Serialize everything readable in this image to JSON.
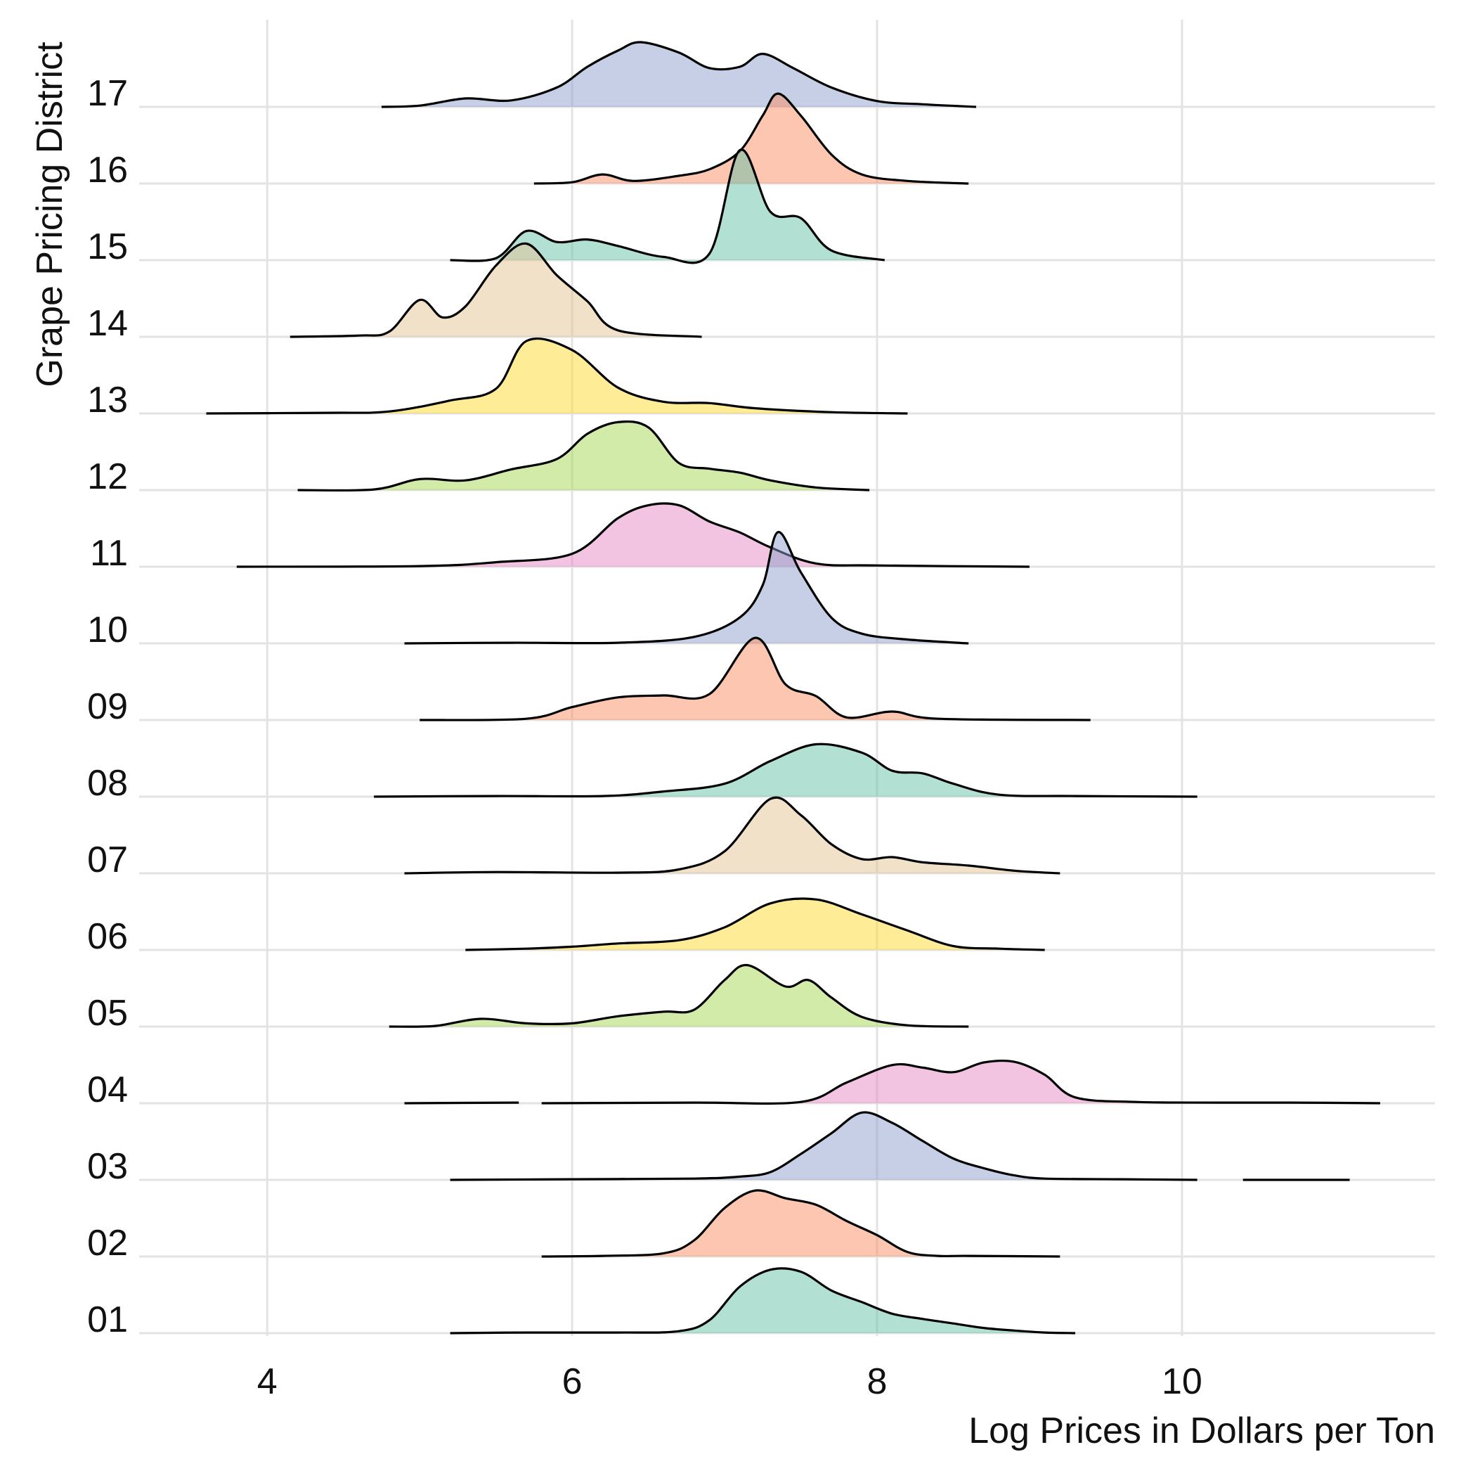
{
  "chart_data": {
    "type": "ridgeline",
    "xlabel": "Log Prices in Dollars per Ton",
    "ylabel": "Grape Pricing District",
    "xlim": [
      3.16,
      11.66
    ],
    "x_ticks": [
      "4",
      "6",
      "8",
      "10"
    ],
    "x_tick_values": [
      4,
      6,
      8,
      10
    ],
    "grid": true,
    "legend": "none",
    "series": [
      {
        "name": "01",
        "color": "#66C2A5",
        "range": [
          5.2,
          9.3
        ],
        "points": [
          [
            5.2,
            0.0
          ],
          [
            5.7,
            0.01
          ],
          [
            6.3,
            0.01
          ],
          [
            6.7,
            0.03
          ],
          [
            6.9,
            0.2
          ],
          [
            7.1,
            0.72
          ],
          [
            7.3,
            0.98
          ],
          [
            7.5,
            0.95
          ],
          [
            7.7,
            0.66
          ],
          [
            7.9,
            0.48
          ],
          [
            8.1,
            0.3
          ],
          [
            8.3,
            0.22
          ],
          [
            8.5,
            0.15
          ],
          [
            8.7,
            0.08
          ],
          [
            8.9,
            0.04
          ],
          [
            9.1,
            0.01
          ],
          [
            9.3,
            0.0
          ]
        ]
      },
      {
        "name": "02",
        "color": "#FC8D62",
        "range": [
          5.8,
          9.2
        ],
        "points": [
          [
            5.8,
            0.0
          ],
          [
            6.2,
            0.01
          ],
          [
            6.6,
            0.05
          ],
          [
            6.8,
            0.25
          ],
          [
            7.0,
            0.75
          ],
          [
            7.2,
            1.02
          ],
          [
            7.4,
            0.9
          ],
          [
            7.6,
            0.8
          ],
          [
            7.8,
            0.55
          ],
          [
            8.0,
            0.33
          ],
          [
            8.2,
            0.07
          ],
          [
            8.4,
            0.01
          ],
          [
            8.6,
            0.01
          ],
          [
            9.2,
            0.0
          ]
        ]
      },
      {
        "name": "03",
        "color": "#8DA0CB",
        "segments": [
          [
            [
              5.2,
              0.0
            ],
            [
              6.0,
              0.01
            ],
            [
              6.8,
              0.02
            ],
            [
              7.1,
              0.05
            ],
            [
              7.3,
              0.12
            ],
            [
              7.5,
              0.4
            ],
            [
              7.7,
              0.72
            ],
            [
              7.9,
              1.04
            ],
            [
              8.1,
              0.88
            ],
            [
              8.3,
              0.6
            ],
            [
              8.5,
              0.33
            ],
            [
              8.7,
              0.18
            ],
            [
              8.9,
              0.07
            ],
            [
              9.1,
              0.02
            ],
            [
              9.6,
              0.01
            ],
            [
              10.1,
              0.0
            ]
          ],
          [
            [
              10.4,
              0.0
            ],
            [
              11.1,
              0.0
            ]
          ]
        ]
      },
      {
        "name": "04",
        "color": "#E78AC3",
        "segments": [
          [
            [
              4.9,
              0.0
            ],
            [
              5.65,
              0.01
            ]
          ],
          [
            [
              5.8,
              0.0
            ],
            [
              6.8,
              0.01
            ],
            [
              7.5,
              0.02
            ],
            [
              7.8,
              0.32
            ],
            [
              8.1,
              0.59
            ],
            [
              8.3,
              0.55
            ],
            [
              8.5,
              0.48
            ],
            [
              8.7,
              0.63
            ],
            [
              8.9,
              0.64
            ],
            [
              9.1,
              0.44
            ],
            [
              9.3,
              0.09
            ],
            [
              9.7,
              0.02
            ],
            [
              10.2,
              0.01
            ],
            [
              10.7,
              0.01
            ],
            [
              11.3,
              0.0
            ]
          ]
        ]
      },
      {
        "name": "05",
        "color": "#A6D854",
        "range": [
          4.8,
          8.6
        ],
        "points": [
          [
            4.8,
            0.0
          ],
          [
            5.1,
            0.01
          ],
          [
            5.4,
            0.12
          ],
          [
            5.7,
            0.05
          ],
          [
            6.0,
            0.05
          ],
          [
            6.3,
            0.16
          ],
          [
            6.6,
            0.23
          ],
          [
            6.8,
            0.26
          ],
          [
            7.0,
            0.72
          ],
          [
            7.15,
            0.95
          ],
          [
            7.4,
            0.62
          ],
          [
            7.55,
            0.72
          ],
          [
            7.7,
            0.45
          ],
          [
            7.9,
            0.15
          ],
          [
            8.2,
            0.02
          ],
          [
            8.6,
            0.0
          ]
        ]
      },
      {
        "name": "06",
        "color": "#FFD92F",
        "range": [
          5.3,
          9.1
        ],
        "points": [
          [
            5.3,
            0.0
          ],
          [
            5.7,
            0.02
          ],
          [
            6.0,
            0.05
          ],
          [
            6.3,
            0.1
          ],
          [
            6.7,
            0.15
          ],
          [
            7.0,
            0.35
          ],
          [
            7.3,
            0.72
          ],
          [
            7.6,
            0.78
          ],
          [
            7.9,
            0.55
          ],
          [
            8.2,
            0.3
          ],
          [
            8.5,
            0.06
          ],
          [
            8.8,
            0.02
          ],
          [
            9.1,
            0.0
          ]
        ]
      },
      {
        "name": "07",
        "color": "#E5C494",
        "range": [
          4.9,
          9.2
        ],
        "points": [
          [
            4.9,
            0.0
          ],
          [
            5.5,
            0.02
          ],
          [
            6.3,
            0.01
          ],
          [
            6.7,
            0.06
          ],
          [
            7.0,
            0.34
          ],
          [
            7.3,
            1.15
          ],
          [
            7.5,
            0.9
          ],
          [
            7.7,
            0.45
          ],
          [
            7.9,
            0.22
          ],
          [
            8.1,
            0.25
          ],
          [
            8.3,
            0.17
          ],
          [
            8.6,
            0.12
          ],
          [
            8.9,
            0.04
          ],
          [
            9.2,
            0.0
          ]
        ]
      },
      {
        "name": "08",
        "color": "#66C2A5",
        "range": [
          4.7,
          10.1
        ],
        "points": [
          [
            4.7,
            0.0
          ],
          [
            5.5,
            0.01
          ],
          [
            6.2,
            0.01
          ],
          [
            6.6,
            0.08
          ],
          [
            7.0,
            0.2
          ],
          [
            7.3,
            0.55
          ],
          [
            7.6,
            0.81
          ],
          [
            7.9,
            0.68
          ],
          [
            8.1,
            0.4
          ],
          [
            8.3,
            0.36
          ],
          [
            8.5,
            0.2
          ],
          [
            8.8,
            0.03
          ],
          [
            9.3,
            0.01
          ],
          [
            10.1,
            0.0
          ]
        ]
      },
      {
        "name": "09",
        "color": "#FC8D62",
        "range": [
          5.0,
          9.4
        ],
        "points": [
          [
            5.0,
            0.0
          ],
          [
            5.7,
            0.02
          ],
          [
            6.0,
            0.2
          ],
          [
            6.3,
            0.35
          ],
          [
            6.6,
            0.38
          ],
          [
            6.9,
            0.4
          ],
          [
            7.2,
            1.27
          ],
          [
            7.4,
            0.55
          ],
          [
            7.6,
            0.37
          ],
          [
            7.8,
            0.04
          ],
          [
            8.1,
            0.13
          ],
          [
            8.4,
            0.02
          ],
          [
            9.4,
            0.0
          ]
        ]
      },
      {
        "name": "10",
        "color": "#8DA0CB",
        "range": [
          4.9,
          8.6
        ],
        "points": [
          [
            4.9,
            0.0
          ],
          [
            5.6,
            0.01
          ],
          [
            6.3,
            0.01
          ],
          [
            6.8,
            0.1
          ],
          [
            7.1,
            0.4
          ],
          [
            7.25,
            0.9
          ],
          [
            7.35,
            1.72
          ],
          [
            7.5,
            1.1
          ],
          [
            7.7,
            0.4
          ],
          [
            7.9,
            0.15
          ],
          [
            8.2,
            0.06
          ],
          [
            8.6,
            0.0
          ]
        ]
      },
      {
        "name": "11",
        "color": "#E78AC3",
        "range": [
          3.8,
          9.0
        ],
        "points": [
          [
            3.8,
            0.0
          ],
          [
            5.0,
            0.01
          ],
          [
            5.5,
            0.07
          ],
          [
            6.0,
            0.2
          ],
          [
            6.3,
            0.75
          ],
          [
            6.5,
            0.95
          ],
          [
            6.7,
            0.95
          ],
          [
            6.9,
            0.7
          ],
          [
            7.1,
            0.53
          ],
          [
            7.3,
            0.3
          ],
          [
            7.6,
            0.05
          ],
          [
            8.0,
            0.02
          ],
          [
            9.0,
            0.0
          ]
        ]
      },
      {
        "name": "12",
        "color": "#A6D854",
        "range": [
          4.2,
          7.95
        ],
        "points": [
          [
            4.2,
            0.0
          ],
          [
            4.7,
            0.01
          ],
          [
            5.0,
            0.17
          ],
          [
            5.3,
            0.15
          ],
          [
            5.6,
            0.32
          ],
          [
            5.9,
            0.48
          ],
          [
            6.1,
            0.87
          ],
          [
            6.3,
            1.05
          ],
          [
            6.5,
            0.97
          ],
          [
            6.7,
            0.42
          ],
          [
            6.9,
            0.33
          ],
          [
            7.1,
            0.27
          ],
          [
            7.3,
            0.15
          ],
          [
            7.6,
            0.04
          ],
          [
            7.95,
            0.0
          ]
        ]
      },
      {
        "name": "13",
        "color": "#FFD92F",
        "range": [
          3.6,
          8.2
        ],
        "points": [
          [
            3.6,
            0.0
          ],
          [
            4.4,
            0.01
          ],
          [
            4.8,
            0.03
          ],
          [
            5.2,
            0.2
          ],
          [
            5.5,
            0.38
          ],
          [
            5.7,
            1.12
          ],
          [
            6.0,
            0.98
          ],
          [
            6.3,
            0.4
          ],
          [
            6.6,
            0.18
          ],
          [
            6.9,
            0.16
          ],
          [
            7.2,
            0.08
          ],
          [
            7.7,
            0.02
          ],
          [
            8.2,
            0.0
          ]
        ]
      },
      {
        "name": "14",
        "color": "#E5C494",
        "range": [
          4.15,
          6.85
        ],
        "points": [
          [
            4.15,
            0.0
          ],
          [
            4.6,
            0.02
          ],
          [
            4.8,
            0.08
          ],
          [
            5.0,
            0.57
          ],
          [
            5.15,
            0.3
          ],
          [
            5.3,
            0.47
          ],
          [
            5.5,
            1.1
          ],
          [
            5.7,
            1.44
          ],
          [
            5.9,
            0.95
          ],
          [
            6.1,
            0.55
          ],
          [
            6.3,
            0.1
          ],
          [
            6.85,
            0.0
          ]
        ]
      },
      {
        "name": "15",
        "color": "#66C2A5",
        "range": [
          5.2,
          8.05
        ],
        "points": [
          [
            5.2,
            0.0
          ],
          [
            5.5,
            0.03
          ],
          [
            5.7,
            0.45
          ],
          [
            5.9,
            0.28
          ],
          [
            6.1,
            0.32
          ],
          [
            6.3,
            0.22
          ],
          [
            6.6,
            0.05
          ],
          [
            6.9,
            0.1
          ],
          [
            7.1,
            1.7
          ],
          [
            7.3,
            0.75
          ],
          [
            7.5,
            0.65
          ],
          [
            7.7,
            0.15
          ],
          [
            8.05,
            0.0
          ]
        ]
      },
      {
        "name": "16",
        "color": "#FC8D62",
        "range": [
          5.75,
          8.6
        ],
        "points": [
          [
            5.75,
            0.0
          ],
          [
            6.0,
            0.02
          ],
          [
            6.2,
            0.14
          ],
          [
            6.4,
            0.04
          ],
          [
            6.7,
            0.12
          ],
          [
            6.9,
            0.22
          ],
          [
            7.1,
            0.5
          ],
          [
            7.25,
            1.05
          ],
          [
            7.35,
            1.39
          ],
          [
            7.5,
            1.05
          ],
          [
            7.7,
            0.45
          ],
          [
            7.9,
            0.14
          ],
          [
            8.2,
            0.04
          ],
          [
            8.6,
            0.0
          ]
        ]
      },
      {
        "name": "17",
        "color": "#8DA0CB",
        "range": [
          4.75,
          8.65
        ],
        "points": [
          [
            4.75,
            0.0
          ],
          [
            5.0,
            0.02
          ],
          [
            5.3,
            0.13
          ],
          [
            5.6,
            0.1
          ],
          [
            5.9,
            0.3
          ],
          [
            6.1,
            0.62
          ],
          [
            6.3,
            0.87
          ],
          [
            6.45,
            1.0
          ],
          [
            6.7,
            0.84
          ],
          [
            6.9,
            0.6
          ],
          [
            7.1,
            0.62
          ],
          [
            7.25,
            0.82
          ],
          [
            7.45,
            0.6
          ],
          [
            7.7,
            0.3
          ],
          [
            8.0,
            0.09
          ],
          [
            8.3,
            0.04
          ],
          [
            8.65,
            0.0
          ]
        ]
      }
    ]
  }
}
